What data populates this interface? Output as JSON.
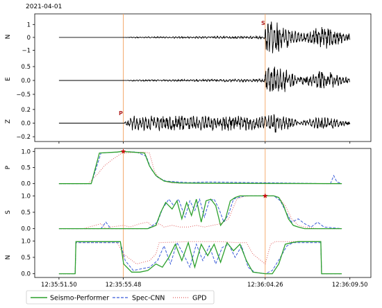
{
  "date_label": "2021-04-01",
  "pick_labels": {
    "p": "P",
    "s": "S"
  },
  "colors": {
    "waveform": "#000000",
    "seismo_performer": "#2ca02c",
    "spec_cnn": "#3a5bd9",
    "gpd": "#e05a5a",
    "pick_line": "#f4a460",
    "star": "#cc1111",
    "pick_text": "#b22222"
  },
  "chart_data": [
    {
      "type": "line",
      "ylabel": "N",
      "yticks": [
        "1",
        "0",
        "−1"
      ],
      "ytick_values": [
        1,
        0,
        -1
      ],
      "ylim": [
        -1.4,
        1.5
      ],
      "series": [
        {
          "channel": "N",
          "noise_start_s": 0,
          "p_arrival_s": 3.98,
          "s_arrival_s": 12.76,
          "pre_s_amplitude": 0.1,
          "post_s_peak_amplitude": 1.35
        }
      ]
    },
    {
      "type": "line",
      "ylabel": "E",
      "yticks": [
        "0.5",
        "0.0",
        "−0.5"
      ],
      "ytick_values": [
        0.5,
        0.0,
        -0.5
      ],
      "ylim": [
        -0.6,
        0.7
      ],
      "series": [
        {
          "channel": "E",
          "p_arrival_s": 3.98,
          "s_arrival_s": 12.76,
          "pre_s_amplitude": 0.05,
          "post_s_peak_amplitude": 0.55
        }
      ]
    },
    {
      "type": "line",
      "ylabel": "Z",
      "yticks": [
        "0.2",
        "0.0",
        "−0.2"
      ],
      "ytick_values": [
        0.2,
        0.0,
        -0.2
      ],
      "ylim": [
        -0.25,
        0.3
      ],
      "series": [
        {
          "channel": "Z",
          "p_arrival_s": 3.98,
          "s_arrival_s": 12.76,
          "pre_s_amplitude": 0.1,
          "post_s_peak_amplitude": 0.15
        }
      ]
    },
    {
      "type": "line",
      "ylabel": "P",
      "yticks": [
        "1.0",
        "0.5",
        "0.0"
      ],
      "ytick_values": [
        1.0,
        0.5,
        0.0
      ],
      "ylim": [
        -0.05,
        1.05
      ],
      "series": [
        {
          "name": "Seismo-Performer",
          "x": [
            0,
            2.0,
            2.5,
            3.6,
            3.9,
            4.5,
            5.3,
            5.6,
            6.0,
            6.5,
            7.0,
            7.5,
            9.0,
            17.5
          ],
          "values": [
            0,
            0,
            0.95,
            0.98,
            1.0,
            0.98,
            0.95,
            0.55,
            0.25,
            0.08,
            0.04,
            0.02,
            0.01,
            0
          ]
        },
        {
          "name": "Spec-CNN",
          "x": [
            0,
            2.0,
            2.6,
            3.6,
            3.9,
            4.8,
            5.4,
            5.7,
            6.1,
            6.6,
            8.0,
            9.2,
            16.8,
            17.0,
            17.2,
            17.5
          ],
          "values": [
            0,
            0,
            0.95,
            0.98,
            1.0,
            0.98,
            0.85,
            0.45,
            0.2,
            0.08,
            0.03,
            0.05,
            0,
            0.25,
            0.05,
            0
          ]
        },
        {
          "name": "GPD",
          "x": [
            0,
            1.8,
            2.4,
            2.8,
            3.3,
            3.9,
            5.2,
            5.6,
            5.9,
            6.2,
            6.7,
            7.0,
            17.5
          ],
          "values": [
            0,
            0,
            0.3,
            0.55,
            0.75,
            0.95,
            0.98,
            0.95,
            0.4,
            0.15,
            0.05,
            0.02,
            0
          ]
        }
      ]
    },
    {
      "type": "line",
      "ylabel": "S",
      "yticks": [
        "1.0",
        "0.5",
        "0.0"
      ],
      "ytick_values": [
        1.0,
        0.5,
        0.0
      ],
      "ylim": [
        -0.05,
        1.05
      ],
      "series": [
        {
          "name": "Seismo-Performer",
          "x": [
            0,
            5.5,
            6.0,
            6.3,
            6.6,
            7.0,
            7.3,
            7.6,
            7.9,
            8.2,
            8.5,
            8.8,
            9.1,
            9.4,
            9.7,
            10.0,
            10.3,
            10.6,
            10.9,
            11.2,
            11.6,
            12.0,
            12.76,
            13.3,
            13.6,
            13.9,
            14.2,
            14.5,
            14.8,
            15.2,
            17.5
          ],
          "values": [
            0,
            0,
            0.1,
            0.5,
            0.8,
            0.6,
            0.85,
            0.3,
            0.8,
            0.4,
            0.9,
            0.2,
            0.85,
            0.9,
            0.7,
            0.1,
            0.3,
            0.85,
            0.95,
            1.0,
            1.0,
            1.0,
            1.0,
            1.0,
            0.95,
            0.7,
            0.3,
            0.1,
            0.05,
            0,
            0
          ]
        },
        {
          "name": "Spec-CNN",
          "x": [
            0,
            2.6,
            2.9,
            3.2,
            5.5,
            6.1,
            6.4,
            6.8,
            7.1,
            7.4,
            7.8,
            8.1,
            8.4,
            8.7,
            9.0,
            9.3,
            9.6,
            9.9,
            10.2,
            10.5,
            10.8,
            11.1,
            11.5,
            12.0,
            12.76,
            13.3,
            13.7,
            14.0,
            14.4,
            14.8,
            15.2,
            15.6,
            16.0,
            16.4,
            17.5
          ],
          "values": [
            0,
            0,
            0.2,
            0,
            0,
            0.2,
            0.6,
            0.9,
            0.7,
            0.9,
            0.35,
            0.85,
            0.55,
            0.9,
            0.35,
            0.85,
            0.9,
            0.6,
            0.2,
            0.45,
            0.9,
            0.95,
            1.0,
            1.0,
            1.0,
            1.0,
            0.85,
            0.55,
            0.2,
            0.3,
            0.15,
            0.05,
            0.2,
            0.05,
            0
          ]
        },
        {
          "name": "GPD",
          "x": [
            0,
            1.5,
            2.6,
            2.9,
            3.2,
            4.0,
            4.4,
            5.0,
            5.5,
            5.8,
            6.2,
            6.5,
            7.0,
            7.5,
            8.0,
            8.5,
            9.0,
            9.5,
            10.0,
            10.5,
            11.0,
            11.4,
            11.8,
            12.2,
            12.76,
            13.3,
            13.6,
            14.0,
            14.4,
            14.8,
            15.2,
            16.0,
            17.5
          ],
          "values": [
            0,
            0,
            0.15,
            0,
            0.05,
            0.1,
            0.05,
            0.15,
            0.2,
            0.05,
            0.15,
            0.05,
            0.1,
            0.05,
            0.05,
            0.1,
            0.05,
            0.1,
            0.15,
            0.3,
            0.9,
            0.98,
            1.0,
            1.0,
            1.0,
            1.0,
            0.95,
            0.7,
            0.3,
            0.1,
            0.05,
            0,
            0
          ]
        }
      ]
    },
    {
      "type": "line",
      "ylabel": "N",
      "yticks": [
        "1.0",
        "0.5",
        "0.0"
      ],
      "ytick_values": [
        1.0,
        0.5,
        0.0
      ],
      "ylim": [
        -0.05,
        1.05
      ],
      "series": [
        {
          "name": "Seismo-Performer",
          "x": [
            0,
            1.0,
            1.05,
            3.8,
            4.0,
            4.5,
            5.0,
            5.5,
            6.0,
            6.4,
            6.8,
            7.2,
            7.6,
            8.0,
            8.4,
            8.8,
            9.2,
            9.6,
            10.0,
            10.4,
            10.8,
            11.2,
            11.6,
            12.0,
            12.76,
            13.2,
            13.6,
            14.0,
            14.4,
            14.8,
            16.2,
            16.25,
            17.5
          ],
          "values": [
            0,
            0,
            0.98,
            0.98,
            0.3,
            0.05,
            0.05,
            0.1,
            0.3,
            0.2,
            0.5,
            0.9,
            0.4,
            0.95,
            0.2,
            0.9,
            0.55,
            0.9,
            0.35,
            0.95,
            0.7,
            0.9,
            0.4,
            0.05,
            0,
            0,
            0.3,
            0.9,
            0.95,
            0.98,
            0.98,
            0,
            0
          ]
        },
        {
          "name": "Spec-CNN",
          "x": [
            0,
            1.0,
            1.05,
            3.8,
            4.1,
            4.6,
            5.1,
            5.6,
            6.1,
            6.5,
            6.9,
            7.3,
            7.7,
            8.1,
            8.5,
            8.9,
            9.3,
            9.7,
            10.1,
            10.5,
            10.9,
            11.3,
            11.7,
            12.1,
            12.76,
            13.2,
            13.7,
            14.1,
            14.5,
            14.9,
            16.2,
            16.25,
            17.5
          ],
          "values": [
            0,
            0,
            0.95,
            0.95,
            0.4,
            0.1,
            0.15,
            0.2,
            0.4,
            0.85,
            0.3,
            0.95,
            0.6,
            0.2,
            0.9,
            0.4,
            0.85,
            0.3,
            0.8,
            0.9,
            0.5,
            0.85,
            0.2,
            0.05,
            0,
            0.1,
            0.5,
            0.85,
            0.95,
            0.95,
            0.95,
            0,
            0
          ]
        },
        {
          "name": "GPD",
          "x": [
            0,
            1.0,
            1.05,
            3.6,
            4.0,
            4.8,
            5.6,
            6.0,
            6.2,
            8.0,
            10.0,
            11.0,
            11.6,
            12.0,
            12.76,
            13.1,
            13.4,
            16.2,
            16.25,
            17.5
          ],
          "values": [
            0,
            0,
            0.95,
            0.95,
            0.6,
            0.3,
            0.4,
            0.6,
            0.95,
            0.98,
            0.98,
            0.95,
            0.95,
            0.6,
            0.3,
            0.9,
            0.98,
            0.98,
            0,
            0
          ]
        }
      ]
    }
  ],
  "x_axis": {
    "tick_labels": [
      "12:35:51.50",
      "12:35:55.48",
      "12:36:04.26",
      "12:36:09.50"
    ],
    "tick_values_s": [
      0,
      3.98,
      12.76,
      18.0
    ],
    "range_s": [
      -1.5,
      19.3
    ],
    "p_pick_s": 3.98,
    "s_pick_s": 12.76
  },
  "legend": {
    "entries": [
      {
        "label": "Seismo-Performer",
        "style": "solid"
      },
      {
        "label": "Spec-CNN",
        "style": "dashed"
      },
      {
        "label": "GPD",
        "style": "dotted"
      }
    ]
  }
}
